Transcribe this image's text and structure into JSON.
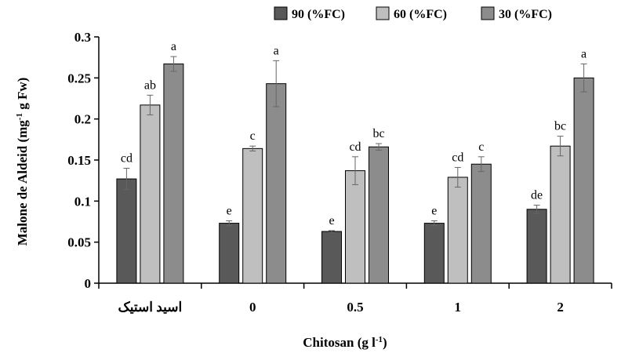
{
  "chart_data": {
    "type": "bar",
    "xlabel": "Chitosan (g l",
    "xlabel_sup": "-1",
    "xlabel_suffix": ")",
    "ylabel": "Malone de Aldeid (mg",
    "ylabel_sup": "-1",
    "ylabel_suffix": " g Fw)",
    "ylim": [
      0,
      0.3
    ],
    "yticks": [
      "0",
      "0.05",
      "0.1",
      "0.15",
      "0.2",
      "0.25",
      "0.3"
    ],
    "categories": [
      "اسید استیک",
      "0",
      "0.5",
      "1",
      "2"
    ],
    "legend_position": "top",
    "series": [
      {
        "name": "90 (%FC)",
        "color": "#595959",
        "values": [
          0.127,
          0.073,
          0.063,
          0.073,
          0.09
        ],
        "errors": [
          0.013,
          0.003,
          0.001,
          0.003,
          0.005
        ],
        "letters": [
          "cd",
          "e",
          "e",
          "e",
          "de"
        ]
      },
      {
        "name": "60 (%FC)",
        "color": "#bfbfbf",
        "values": [
          0.217,
          0.164,
          0.137,
          0.129,
          0.167
        ],
        "errors": [
          0.012,
          0.003,
          0.017,
          0.012,
          0.012
        ],
        "letters": [
          "ab",
          "c",
          "cd",
          "cd",
          "bc"
        ]
      },
      {
        "name": "30 (%FC)",
        "color": "#8c8c8c",
        "values": [
          0.267,
          0.243,
          0.166,
          0.145,
          0.25
        ],
        "errors": [
          0.009,
          0.028,
          0.004,
          0.009,
          0.017
        ],
        "letters": [
          "a",
          "a",
          "bc",
          "c",
          "a"
        ]
      }
    ]
  }
}
